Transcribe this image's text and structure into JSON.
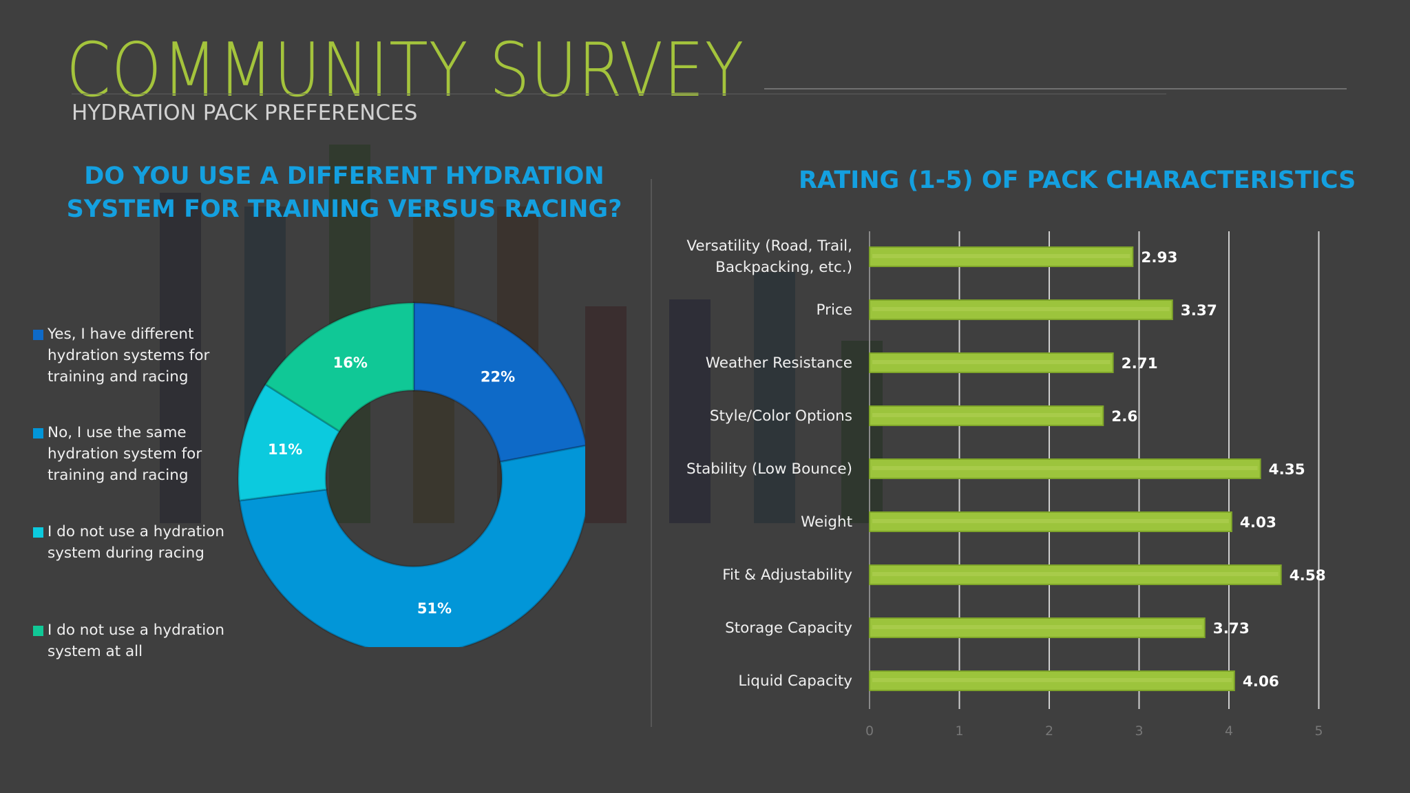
{
  "header": {
    "title": "COMMUNITY SURVEY",
    "subtitle": "HYDRATION PACK PREFERENCES"
  },
  "colors": {
    "background": "#3f3f3f",
    "title": "#a4c43c",
    "chart_title": "#14a0e0",
    "bar_fill": "#9cc43c",
    "bar_outline": "#7fa52a"
  },
  "chart_data": [
    {
      "type": "pie",
      "variant": "donut",
      "title_lines": [
        "DO YOU USE A DIFFERENT HYDRATION",
        "SYSTEM FOR TRAINING VERSUS RACING?"
      ],
      "legend_position": "left",
      "slices": [
        {
          "label_lines": [
            "Yes, I have different",
            "hydration systems for",
            "training and racing"
          ],
          "value": 22,
          "display": "22%",
          "color": "#0e6ac8"
        },
        {
          "label_lines": [
            "No, I use the same",
            "hydration system for",
            "training and racing"
          ],
          "value": 51,
          "display": "51%",
          "color": "#0296d8"
        },
        {
          "label_lines": [
            "I do not use a hydration",
            "system during racing"
          ],
          "value": 11,
          "display": "11%",
          "color": "#0ccade"
        },
        {
          "label_lines": [
            "I do not use a hydration",
            "system at all"
          ],
          "value": 16,
          "display": "16%",
          "color": "#10c896"
        }
      ]
    },
    {
      "type": "bar",
      "orientation": "horizontal",
      "title": "RATING (1-5) OF PACK CHARACTERISTICS",
      "categories": [
        [
          "Versatility (Road, Trail,",
          "Backpacking, etc.)"
        ],
        [
          "Price"
        ],
        [
          "Weather Resistance"
        ],
        [
          "Style/Color Options"
        ],
        [
          "Stability (Low Bounce)"
        ],
        [
          "Weight"
        ],
        [
          "Fit & Adjustability"
        ],
        [
          "Storage Capacity"
        ],
        [
          "Liquid Capacity"
        ]
      ],
      "values": [
        2.93,
        3.37,
        2.71,
        2.6,
        4.35,
        4.03,
        4.58,
        3.73,
        4.06
      ],
      "value_labels": [
        "2.93",
        "3.37",
        "2.71",
        "2.6",
        "4.35",
        "4.03",
        "4.58",
        "3.73",
        "4.06"
      ],
      "xlim": [
        0,
        5
      ],
      "xticks": [
        "0",
        "1",
        "2",
        "3",
        "4",
        "5"
      ],
      "grid": true
    }
  ]
}
